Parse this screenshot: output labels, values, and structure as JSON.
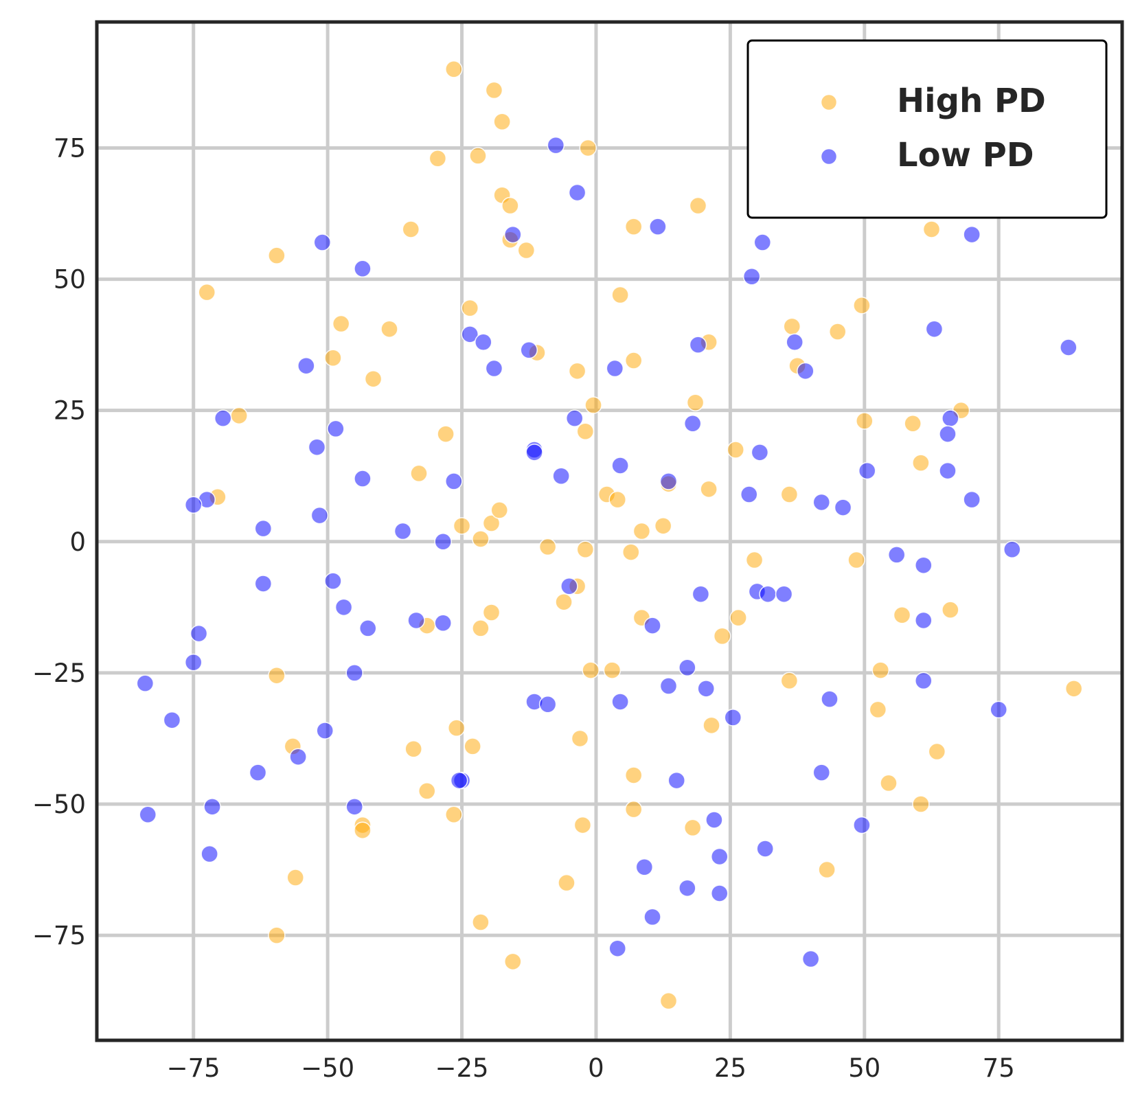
{
  "chart_data": {
    "type": "scatter",
    "title": "",
    "xlabel": "",
    "ylabel": "",
    "xlim": [
      -93,
      98
    ],
    "ylim": [
      -95,
      99
    ],
    "xticks": [
      -75,
      -50,
      -25,
      0,
      25,
      50,
      75
    ],
    "yticks": [
      -75,
      -50,
      -25,
      0,
      25,
      50,
      75
    ],
    "xtick_labels": [
      "−75",
      "−50",
      "−25",
      "0",
      "25",
      "50",
      "75"
    ],
    "ytick_labels": [
      "−75",
      "−50",
      "−25",
      "0",
      "25",
      "50",
      "75"
    ],
    "grid": true,
    "legend_position": "top-right",
    "series": [
      {
        "name": "High PD",
        "color": "#ffa500",
        "points": [
          [
            -26.5,
            90
          ],
          [
            -19,
            86
          ],
          [
            -17.5,
            80
          ],
          [
            -29.5,
            73
          ],
          [
            -22,
            73.5
          ],
          [
            -1.5,
            75
          ],
          [
            -17.5,
            66
          ],
          [
            -16,
            64
          ],
          [
            -34.5,
            59.5
          ],
          [
            -16,
            57.5
          ],
          [
            -13,
            55.5
          ],
          [
            -59.5,
            54.5
          ],
          [
            7,
            60
          ],
          [
            19,
            64
          ],
          [
            -72.5,
            47.5
          ],
          [
            -47.5,
            41.5
          ],
          [
            -38.5,
            40.5
          ],
          [
            -23.5,
            44.5
          ],
          [
            -49,
            35
          ],
          [
            -41.5,
            31
          ],
          [
            -11,
            36
          ],
          [
            4.5,
            47
          ],
          [
            7,
            34.5
          ],
          [
            -3.5,
            32.5
          ],
          [
            21,
            38
          ],
          [
            36.5,
            41
          ],
          [
            45,
            40
          ],
          [
            49.5,
            45
          ],
          [
            37.5,
            33.5
          ],
          [
            -66.5,
            24
          ],
          [
            -28,
            20.5
          ],
          [
            -2,
            21
          ],
          [
            -0.5,
            26
          ],
          [
            18.5,
            26.5
          ],
          [
            26,
            17.5
          ],
          [
            50,
            23
          ],
          [
            59,
            22.5
          ],
          [
            68,
            25
          ],
          [
            60.5,
            15
          ],
          [
            62.5,
            59.5
          ],
          [
            -70.5,
            8.5
          ],
          [
            -33,
            13
          ],
          [
            -25,
            3
          ],
          [
            -21.5,
            0.5
          ],
          [
            -19.5,
            3.5
          ],
          [
            -18,
            6
          ],
          [
            -9,
            -1
          ],
          [
            -2,
            -1.5
          ],
          [
            2,
            9
          ],
          [
            4,
            8
          ],
          [
            8.5,
            2
          ],
          [
            12.5,
            3
          ],
          [
            13.5,
            11
          ],
          [
            21,
            10
          ],
          [
            36,
            9
          ],
          [
            6.5,
            -2
          ],
          [
            29.5,
            -3.5
          ],
          [
            48.5,
            -3.5
          ],
          [
            -31.5,
            -16
          ],
          [
            -21.5,
            -16.5
          ],
          [
            -19.5,
            -13.5
          ],
          [
            -6,
            -11.5
          ],
          [
            -3.5,
            -8.5
          ],
          [
            8.5,
            -14.5
          ],
          [
            23.5,
            -18
          ],
          [
            26.5,
            -14.5
          ],
          [
            57,
            -14
          ],
          [
            66,
            -13
          ],
          [
            -59.5,
            -25.5
          ],
          [
            -1,
            -24.5
          ],
          [
            3,
            -24.5
          ],
          [
            36,
            -26.5
          ],
          [
            53,
            -24.5
          ],
          [
            52.5,
            -32
          ],
          [
            89,
            -28
          ],
          [
            -56.5,
            -39
          ],
          [
            -34,
            -39.5
          ],
          [
            -26,
            -35.5
          ],
          [
            -23,
            -39
          ],
          [
            -3,
            -37.5
          ],
          [
            7,
            -44.5
          ],
          [
            21.5,
            -35
          ],
          [
            63.5,
            -40
          ],
          [
            -31.5,
            -47.5
          ],
          [
            -26.5,
            -52
          ],
          [
            -43.5,
            -54
          ],
          [
            -43.5,
            -55
          ],
          [
            -2.5,
            -54
          ],
          [
            7,
            -51
          ],
          [
            18,
            -54.5
          ],
          [
            54.5,
            -46
          ],
          [
            60.5,
            -50
          ],
          [
            43,
            -62.5
          ],
          [
            -56,
            -64
          ],
          [
            -5.5,
            -65
          ],
          [
            -59.5,
            -75
          ],
          [
            -21.5,
            -72.5
          ],
          [
            -15.5,
            -80
          ],
          [
            13.5,
            -87.5
          ]
        ]
      },
      {
        "name": "Low PD",
        "color": "#0000ff",
        "points": [
          [
            -7.5,
            75.5
          ],
          [
            -3.5,
            66.5
          ],
          [
            -51,
            57
          ],
          [
            -43.5,
            52
          ],
          [
            -15.5,
            58.5
          ],
          [
            11.5,
            60
          ],
          [
            31,
            57
          ],
          [
            29,
            50.5
          ],
          [
            70,
            58.5
          ],
          [
            -23.5,
            39.5
          ],
          [
            -21,
            38
          ],
          [
            -19,
            33
          ],
          [
            -12.5,
            36.5
          ],
          [
            -54,
            33.5
          ],
          [
            3.5,
            33
          ],
          [
            19,
            37.5
          ],
          [
            37,
            38
          ],
          [
            39,
            32.5
          ],
          [
            63,
            40.5
          ],
          [
            88,
            37
          ],
          [
            -69.5,
            23.5
          ],
          [
            -48.5,
            21.5
          ],
          [
            -52,
            18
          ],
          [
            -11.5,
            17.5
          ],
          [
            -11.5,
            17
          ],
          [
            -4,
            23.5
          ],
          [
            18,
            22.5
          ],
          [
            30.5,
            17
          ],
          [
            66,
            23.5
          ],
          [
            65.5,
            20.5
          ],
          [
            -72.5,
            8
          ],
          [
            -75,
            7
          ],
          [
            -62,
            2.5
          ],
          [
            -51.5,
            5
          ],
          [
            -43.5,
            12
          ],
          [
            -36,
            2
          ],
          [
            -26.5,
            11.5
          ],
          [
            -28.5,
            0
          ],
          [
            -6.5,
            12.5
          ],
          [
            4.5,
            14.5
          ],
          [
            13.5,
            11.5
          ],
          [
            28.5,
            9
          ],
          [
            42,
            7.5
          ],
          [
            46,
            6.5
          ],
          [
            50.5,
            13.5
          ],
          [
            65.5,
            13.5
          ],
          [
            70,
            8
          ],
          [
            77.5,
            -1.5
          ],
          [
            56,
            -2.5
          ],
          [
            61,
            -4.5
          ],
          [
            -62,
            -8
          ],
          [
            -49,
            -7.5
          ],
          [
            -47,
            -12.5
          ],
          [
            -42.5,
            -16.5
          ],
          [
            -33.5,
            -15
          ],
          [
            -28.5,
            -15.5
          ],
          [
            -5,
            -8.5
          ],
          [
            10.5,
            -16
          ],
          [
            19.5,
            -10
          ],
          [
            30,
            -9.5
          ],
          [
            32,
            -10
          ],
          [
            35,
            -10
          ],
          [
            61,
            -15
          ],
          [
            -74,
            -17.5
          ],
          [
            -75,
            -23
          ],
          [
            -45,
            -25
          ],
          [
            -84,
            -27
          ],
          [
            -79,
            -34
          ],
          [
            -50.5,
            -36
          ],
          [
            -11.5,
            -30.5
          ],
          [
            -9,
            -31
          ],
          [
            4.5,
            -30.5
          ],
          [
            13.5,
            -27.5
          ],
          [
            17,
            -24
          ],
          [
            20.5,
            -28
          ],
          [
            25.5,
            -33.5
          ],
          [
            43.5,
            -30
          ],
          [
            61,
            -26.5
          ],
          [
            75,
            -32
          ],
          [
            -63,
            -44
          ],
          [
            -55.5,
            -41
          ],
          [
            -25,
            -45.5
          ],
          [
            -25.5,
            -45.5
          ],
          [
            15,
            -45.5
          ],
          [
            42,
            -44
          ],
          [
            -83.5,
            -52
          ],
          [
            -71.5,
            -50.5
          ],
          [
            -45,
            -50.5
          ],
          [
            22,
            -53
          ],
          [
            49.5,
            -54
          ],
          [
            -72,
            -59.5
          ],
          [
            9,
            -62
          ],
          [
            17,
            -66
          ],
          [
            23,
            -60
          ],
          [
            31.5,
            -58.5
          ],
          [
            23,
            -67
          ],
          [
            10.5,
            -71.5
          ],
          [
            4,
            -77.5
          ],
          [
            40,
            -79.5
          ]
        ]
      }
    ]
  }
}
